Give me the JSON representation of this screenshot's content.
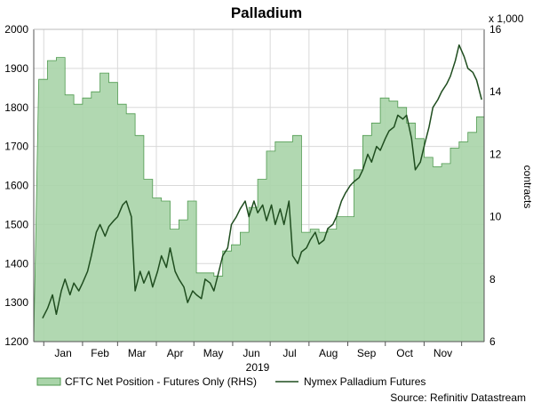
{
  "chart_data": {
    "type": "area+line",
    "title": "Palladium",
    "year_label": "2019",
    "source": "Source: Refinitiv Datastream",
    "y2_multiplier": "x 1,000",
    "y2_label": "contracts",
    "x_tick_labels": [
      "Jan",
      "Feb",
      "Mar",
      "Apr",
      "May",
      "Jun",
      "Jul",
      "Aug",
      "Sep",
      "Oct",
      "Nov"
    ],
    "y_left": {
      "ylim": [
        1200,
        2000
      ],
      "ticks": [
        "1200",
        "1300",
        "1400",
        "1500",
        "1600",
        "1700",
        "1800",
        "1900",
        "2000"
      ]
    },
    "y_right": {
      "ylim": [
        6,
        16
      ],
      "ticks": [
        "6",
        "8",
        "10",
        "12",
        "14",
        "16"
      ]
    },
    "grid": true,
    "legend_placement": "bottom",
    "series": [
      {
        "name": "CFTC Net Position - Futures Only (RHS)",
        "type": "area",
        "axis": "right",
        "color_fill": "#a9d4a9",
        "color_edge": "#4f9a4f",
        "x": [
          "2018-12-28",
          "2019-01-04",
          "2019-01-11",
          "2019-01-18",
          "2019-01-25",
          "2019-02-01",
          "2019-02-08",
          "2019-02-15",
          "2019-02-22",
          "2019-03-01",
          "2019-03-08",
          "2019-03-15",
          "2019-03-22",
          "2019-03-29",
          "2019-04-05",
          "2019-04-12",
          "2019-04-19",
          "2019-04-26",
          "2019-05-03",
          "2019-05-10",
          "2019-05-17",
          "2019-05-24",
          "2019-05-31",
          "2019-06-07",
          "2019-06-14",
          "2019-06-21",
          "2019-06-28",
          "2019-07-05",
          "2019-07-12",
          "2019-07-19",
          "2019-07-26",
          "2019-08-02",
          "2019-08-09",
          "2019-08-16",
          "2019-08-23",
          "2019-08-30",
          "2019-09-06",
          "2019-09-13",
          "2019-09-20",
          "2019-09-27",
          "2019-10-04",
          "2019-10-11",
          "2019-10-18",
          "2019-10-25",
          "2019-11-01",
          "2019-11-08",
          "2019-11-15",
          "2019-11-22",
          "2019-11-29",
          "2019-12-06",
          "2019-12-13"
        ],
        "values": [
          14.4,
          15.0,
          15.1,
          13.9,
          13.6,
          13.8,
          14.0,
          14.6,
          14.3,
          13.6,
          13.3,
          12.6,
          11.2,
          10.6,
          10.5,
          9.6,
          9.9,
          10.5,
          8.2,
          8.2,
          8.1,
          8.9,
          9.1,
          9.5,
          10.3,
          11.2,
          12.1,
          12.4,
          12.4,
          12.6,
          9.5,
          9.6,
          9.5,
          9.6,
          10.0,
          10.0,
          11.5,
          12.6,
          13.0,
          13.8,
          13.7,
          13.5,
          13.0,
          12.5,
          11.9,
          11.6,
          11.7,
          12.2,
          12.4,
          12.7,
          13.2
        ]
      },
      {
        "name": "Nymex Palladium Futures",
        "type": "line",
        "axis": "left",
        "color": "#1f4d1f",
        "x": [
          "2018-12-31",
          "2019-01-04",
          "2019-01-08",
          "2019-01-11",
          "2019-01-15",
          "2019-01-18",
          "2019-01-22",
          "2019-01-25",
          "2019-01-29",
          "2019-02-01",
          "2019-02-05",
          "2019-02-08",
          "2019-02-12",
          "2019-02-15",
          "2019-02-19",
          "2019-02-22",
          "2019-02-26",
          "2019-03-01",
          "2019-03-05",
          "2019-03-08",
          "2019-03-12",
          "2019-03-15",
          "2019-03-19",
          "2019-03-22",
          "2019-03-26",
          "2019-03-29",
          "2019-04-02",
          "2019-04-05",
          "2019-04-09",
          "2019-04-12",
          "2019-04-16",
          "2019-04-19",
          "2019-04-23",
          "2019-04-26",
          "2019-04-30",
          "2019-05-03",
          "2019-05-07",
          "2019-05-10",
          "2019-05-14",
          "2019-05-17",
          "2019-05-21",
          "2019-05-24",
          "2019-05-28",
          "2019-05-31",
          "2019-06-04",
          "2019-06-07",
          "2019-06-11",
          "2019-06-14",
          "2019-06-18",
          "2019-06-21",
          "2019-06-25",
          "2019-06-28",
          "2019-07-02",
          "2019-07-05",
          "2019-07-09",
          "2019-07-12",
          "2019-07-16",
          "2019-07-19",
          "2019-07-23",
          "2019-07-26",
          "2019-07-30",
          "2019-08-02",
          "2019-08-06",
          "2019-08-09",
          "2019-08-13",
          "2019-08-16",
          "2019-08-20",
          "2019-08-23",
          "2019-08-27",
          "2019-08-30",
          "2019-09-03",
          "2019-09-06",
          "2019-09-10",
          "2019-09-13",
          "2019-09-17",
          "2019-09-20",
          "2019-09-24",
          "2019-09-27",
          "2019-10-01",
          "2019-10-04",
          "2019-10-08",
          "2019-10-11",
          "2019-10-15",
          "2019-10-18",
          "2019-10-22",
          "2019-10-25",
          "2019-10-29",
          "2019-11-01",
          "2019-11-05",
          "2019-11-08",
          "2019-11-12",
          "2019-11-15",
          "2019-11-19",
          "2019-11-22",
          "2019-11-26",
          "2019-11-29",
          "2019-12-03",
          "2019-12-06",
          "2019-12-10",
          "2019-12-13",
          "2019-12-17"
        ],
        "values": [
          1260,
          1285,
          1320,
          1270,
          1330,
          1360,
          1320,
          1350,
          1330,
          1350,
          1380,
          1420,
          1480,
          1500,
          1470,
          1495,
          1510,
          1520,
          1550,
          1560,
          1520,
          1330,
          1380,
          1350,
          1380,
          1340,
          1380,
          1420,
          1390,
          1440,
          1380,
          1360,
          1340,
          1300,
          1330,
          1320,
          1310,
          1360,
          1350,
          1330,
          1380,
          1420,
          1440,
          1500,
          1520,
          1540,
          1560,
          1520,
          1560,
          1530,
          1550,
          1510,
          1550,
          1500,
          1540,
          1500,
          1560,
          1420,
          1400,
          1430,
          1440,
          1460,
          1480,
          1450,
          1460,
          1490,
          1500,
          1520,
          1560,
          1580,
          1600,
          1610,
          1620,
          1640,
          1680,
          1660,
          1700,
          1690,
          1720,
          1740,
          1750,
          1780,
          1770,
          1780,
          1720,
          1640,
          1660,
          1700,
          1750,
          1800,
          1820,
          1840,
          1860,
          1880,
          1920,
          1960,
          1930,
          1900,
          1890,
          1870,
          1820
        ]
      }
    ]
  }
}
